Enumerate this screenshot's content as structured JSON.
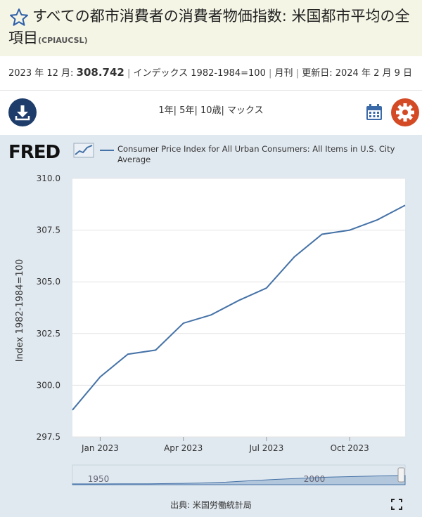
{
  "header": {
    "title": "すべての都市消費者の消費者物価指数: 米国都市平均の全項目",
    "series_id": "(CPIAUCSL)"
  },
  "meta": {
    "date_label": "2023 年 12 月:",
    "value": "308.742",
    "units": "インデックス 1982-1984=100",
    "frequency": "月刊",
    "updated": "更新日: 2024 年 2 月 9 日"
  },
  "toolbar": {
    "range_1y": "1年",
    "range_5y": "5年",
    "range_10y": "10歳",
    "range_max": "マックス"
  },
  "icons": {
    "favorite": "star-icon",
    "download": "download-icon",
    "calendar": "calendar-icon",
    "settings": "gear-icon",
    "fullscreen": "fullscreen-icon"
  },
  "colors": {
    "accent": "#4572a7",
    "download_bg": "#1f3d6b",
    "settings_bg": "#d34a25",
    "calendar": "#3b6aa8",
    "chart_bg": "#e1e9f0"
  },
  "brand": {
    "logo": "FRED"
  },
  "source": "出典: 米国労働統計局",
  "chart_data": {
    "type": "line",
    "ylabel": "Index 1982-1984=100",
    "ylim": [
      297.5,
      310.0
    ],
    "yticks": [
      "297.5",
      "300.0",
      "302.5",
      "305.0",
      "307.5",
      "310.0"
    ],
    "xticks": [
      "Jan 2023",
      "Apr 2023",
      "Jul 2023",
      "Oct 2023"
    ],
    "series": [
      {
        "name": "Consumer Price Index for All Urban Consumers: All Items in U.S. City Average",
        "x": [
          "2022-12",
          "2023-01",
          "2023-02",
          "2023-03",
          "2023-04",
          "2023-05",
          "2023-06",
          "2023-07",
          "2023-08",
          "2023-09",
          "2023-10",
          "2023-11",
          "2023-12"
        ],
        "values": [
          298.8,
          300.4,
          301.5,
          301.7,
          303.0,
          303.4,
          304.1,
          304.7,
          306.2,
          307.3,
          307.5,
          308.0,
          308.7
        ]
      }
    ],
    "navigator": {
      "labels": [
        "1950",
        "2000"
      ],
      "values": [
        24,
        25,
        27,
        30,
        38,
        55,
        82,
        130,
        172,
        207,
        240,
        260,
        281,
        300
      ]
    },
    "grid": true,
    "legend": "top"
  }
}
